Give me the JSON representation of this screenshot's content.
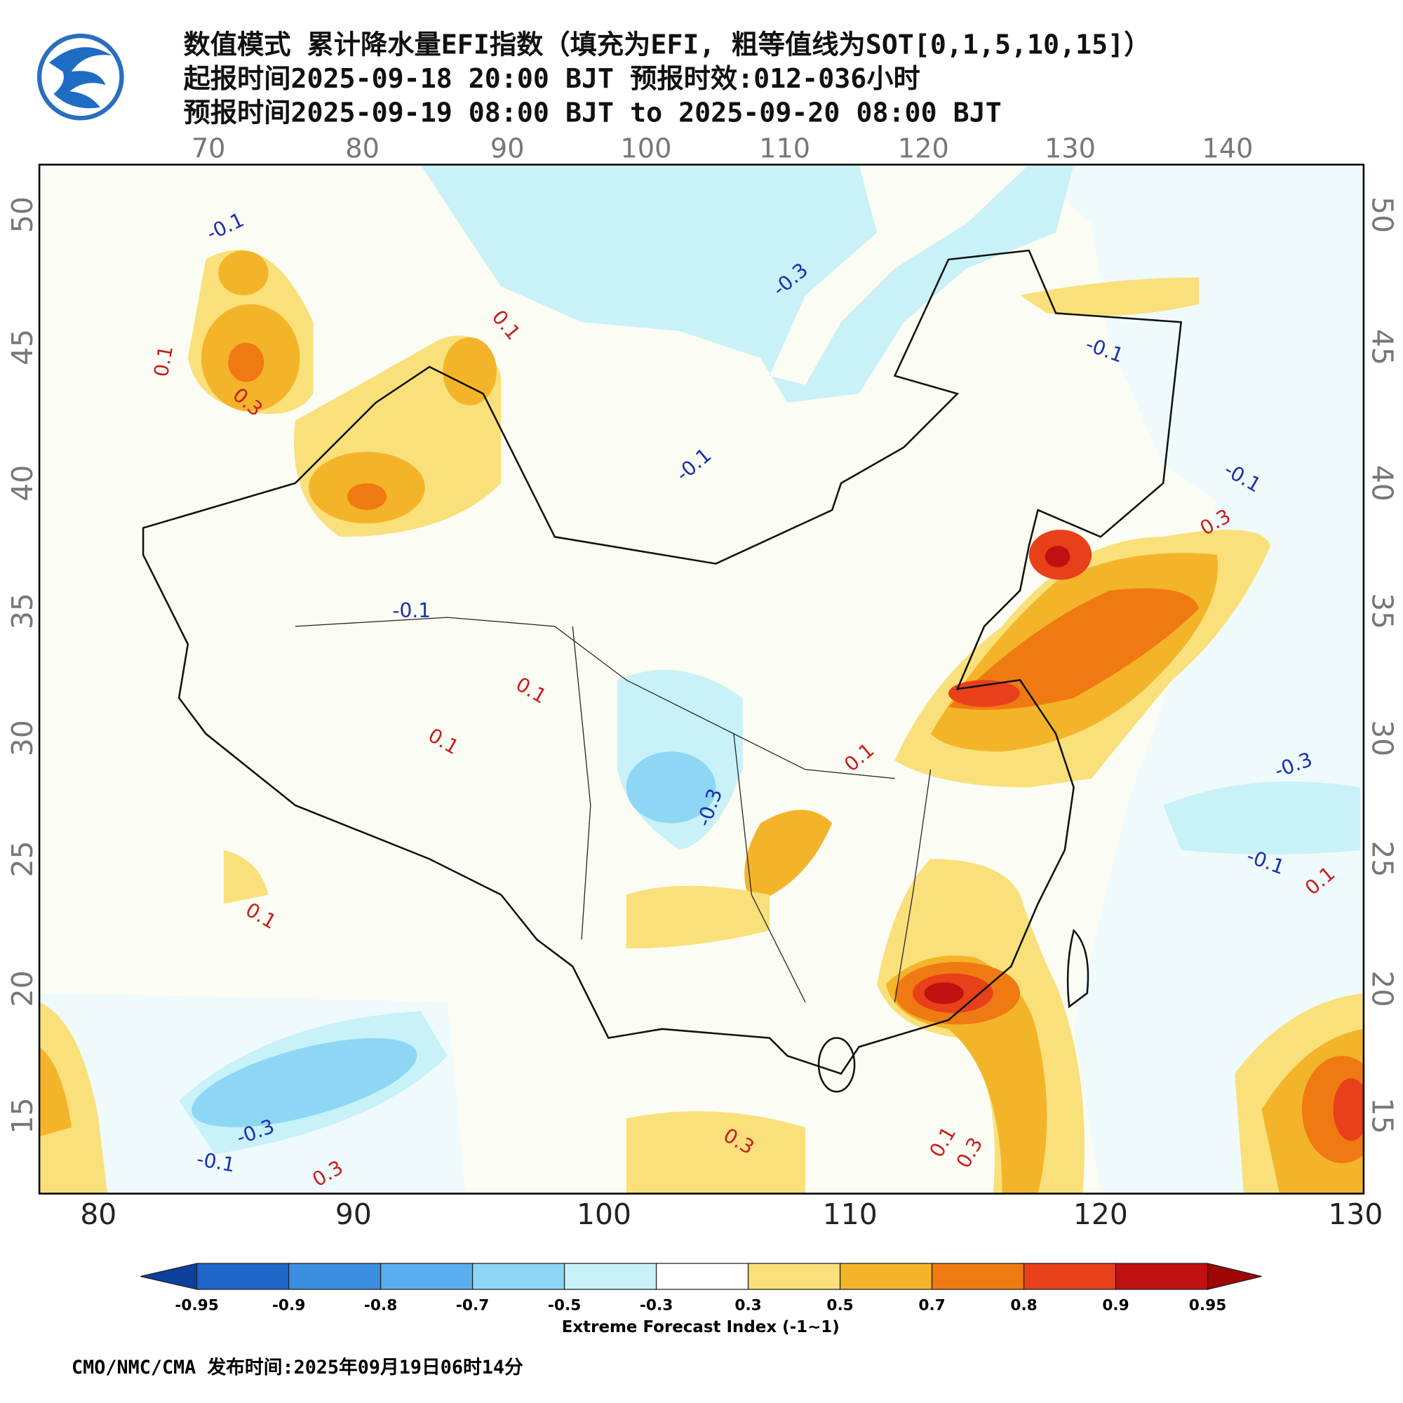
{
  "header": {
    "title_lines": [
      "数值模式 累计降水量EFI指数（填充为EFI, 粗等值线为SOT[0,1,5,10,15]）",
      "起报时间2025-09-18 20:00 BJT 预报时效:012-036小时",
      "预报时间2025-09-19 08:00 BJT to 2025-09-20 08:00 BJT"
    ]
  },
  "map": {
    "top_lon_ticks": [
      70,
      80,
      90,
      100,
      110,
      120,
      130,
      140
    ],
    "bottom_lon_ticks": [
      80,
      90,
      100,
      110,
      120,
      130
    ],
    "left_lat_ticks": [
      50,
      45,
      40,
      35,
      30,
      25,
      20,
      15
    ],
    "right_lat_ticks": [
      50,
      45,
      40,
      35,
      30,
      25,
      20,
      15
    ],
    "contour_labels": [
      "-0.1",
      "0.1",
      "0.3",
      "-0.3",
      "-0.1",
      "-0.1",
      "0.1",
      "-0.1",
      "-0.1",
      "0.3",
      "-0.3",
      "-0.1",
      "0.1",
      "0.1",
      "-0.3",
      "-0.1",
      "0.3",
      "0.3",
      "0.1",
      "0.3",
      "0.1",
      "-0.3",
      "0.1",
      "0.1"
    ]
  },
  "colorbar": {
    "bounds": [
      -0.95,
      -0.9,
      -0.8,
      -0.7,
      -0.5,
      -0.3,
      0.3,
      0.5,
      0.7,
      0.8,
      0.9,
      0.95
    ],
    "colors": [
      "#0d3f9c",
      "#1f66c9",
      "#3a8fe0",
      "#5aaeef",
      "#8dd7f5",
      "#c8f1f8",
      "#ffffff",
      "#f9e07a",
      "#f4b42a",
      "#f07a12",
      "#e8401a",
      "#c01010",
      "#a00606"
    ],
    "label": "Extreme Forecast Index (-1~1)"
  },
  "footer": "CMO/NMC/CMA 发布时间:2025年09月19日06时14分"
}
